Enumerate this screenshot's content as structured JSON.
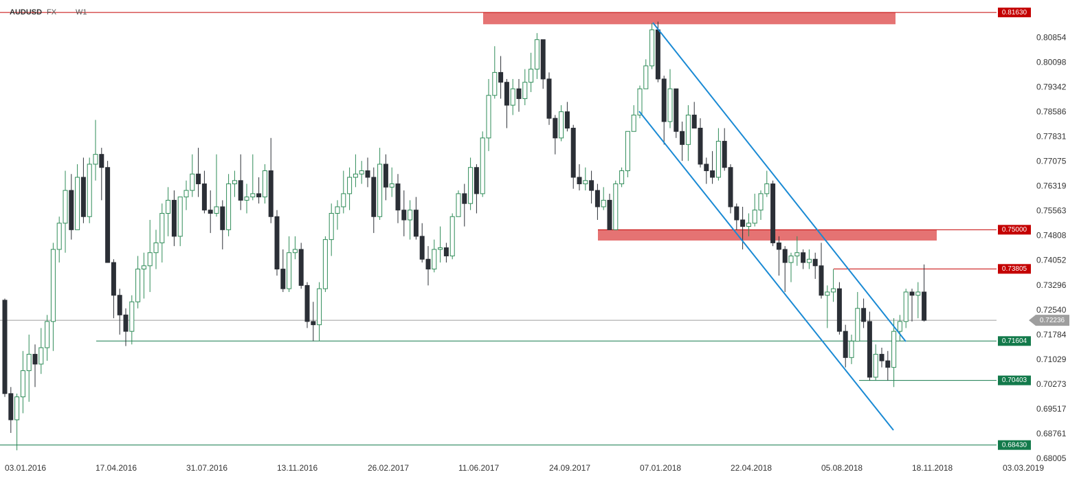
{
  "chart_data": {
    "type": "candlestick",
    "title": "AUDUSD",
    "market": "FX",
    "timeframe": "W1",
    "up_color": "#2e8b57",
    "down_color": "#2b2f36",
    "ylim": [
      0.6792,
      0.8201
    ],
    "yticks": [
      0.80854,
      0.80098,
      0.79342,
      0.78586,
      0.77831,
      0.77075,
      0.76319,
      0.75563,
      0.74808,
      0.74052,
      0.73296,
      {
        "value": 0.7254,
        "label": "0.72540"
      },
      0.71784,
      0.71029,
      0.70273,
      0.69517,
      0.68761,
      0.68005
    ],
    "grid": false,
    "categories": [
      "03.01.2016",
      null,
      null,
      null,
      null,
      null,
      null,
      null,
      null,
      null,
      null,
      null,
      null,
      null,
      null,
      "17.04.2016",
      null,
      null,
      null,
      null,
      null,
      null,
      null,
      null,
      null,
      null,
      null,
      null,
      null,
      null,
      "31.07.2016",
      null,
      null,
      null,
      null,
      null,
      null,
      null,
      null,
      null,
      null,
      null,
      null,
      null,
      null,
      "13.11.2016",
      null,
      null,
      null,
      null,
      null,
      null,
      null,
      null,
      null,
      null,
      null,
      null,
      null,
      null,
      "26.02.2017",
      null,
      null,
      null,
      null,
      null,
      null,
      null,
      null,
      null,
      null,
      null,
      null,
      null,
      null,
      "11.06.2017",
      null,
      null,
      null,
      null,
      null,
      null,
      null,
      null,
      null,
      null,
      null,
      null,
      null,
      null,
      "24.09.2017",
      null,
      null,
      null,
      null,
      null,
      null,
      null,
      null,
      null,
      null,
      null,
      null,
      null,
      null,
      "07.01.2018",
      null,
      null,
      null,
      null,
      null,
      null,
      null,
      null,
      null,
      null,
      null,
      null,
      null,
      null,
      "22.04.2018",
      null,
      null,
      null,
      null,
      null,
      null,
      null,
      null,
      null,
      null,
      null,
      null,
      null,
      null,
      "05.08.2018",
      null,
      null,
      null,
      null,
      null,
      null,
      null,
      null,
      null,
      null,
      null,
      null,
      null,
      null,
      "18.11.2018",
      null,
      null,
      null,
      null,
      null,
      null,
      null,
      null,
      null,
      null,
      null,
      null,
      null,
      null,
      "03.03.2019"
    ],
    "open": [
      0.7285,
      0.7,
      0.692,
      0.699,
      0.707,
      0.712,
      0.709,
      0.714,
      0.722,
      0.744,
      0.752,
      0.762,
      0.75,
      0.766,
      0.754,
      0.77,
      0.773,
      0.769,
      0.74,
      0.73,
      0.724,
      0.719,
      0.728,
      0.738,
      0.739,
      0.743,
      0.746,
      0.755,
      0.759,
      0.748,
      0.76,
      0.762,
      0.767,
      0.764,
      0.756,
      0.755,
      0.757,
      0.75,
      0.764,
      0.765,
      0.759,
      0.76,
      0.761,
      0.76,
      0.768,
      0.754,
      0.738,
      0.732,
      0.743,
      0.744,
      0.733,
      0.722,
      0.721,
      0.732,
      0.747,
      0.755,
      0.757,
      0.761,
      0.766,
      0.767,
      0.768,
      0.766,
      0.754,
      0.77,
      0.763,
      0.764,
      0.756,
      0.753,
      0.756,
      0.748,
      0.741,
      0.738,
      0.744,
      0.7445,
      0.742,
      0.754,
      0.761,
      0.758,
      0.769,
      0.761,
      0.778,
      0.791,
      0.798,
      0.795,
      0.788,
      0.793,
      0.79,
      0.795,
      0.799,
      0.808,
      0.796,
      0.784,
      0.778,
      0.786,
      0.781,
      0.766,
      0.764,
      0.765,
      0.762,
      0.757,
      0.759,
      0.75,
      0.764,
      0.768,
      0.78,
      0.785,
      0.793,
      0.8,
      0.811,
      0.796,
      0.783,
      0.793,
      0.78,
      0.776,
      0.785,
      0.781,
      0.77,
      0.768,
      0.766,
      0.777,
      0.769,
      0.757,
      0.753,
      0.751,
      0.752,
      0.756,
      0.761,
      0.764,
      0.746,
      0.744,
      0.74,
      0.742,
      0.743,
      0.74,
      0.741,
      0.739,
      0.73,
      0.731,
      0.732,
      0.719,
      0.711,
      0.716,
      0.726,
      0.722,
      0.705,
      0.712,
      0.71,
      0.708,
      0.719,
      0.722,
      0.731,
      0.73,
      0.731,
      null,
      null,
      null,
      null,
      null,
      null,
      null,
      null,
      null,
      null,
      null,
      null,
      null
    ],
    "high": [
      0.729,
      0.702,
      0.7,
      0.713,
      0.718,
      0.715,
      0.72,
      0.724,
      0.746,
      0.754,
      0.768,
      0.767,
      0.77,
      0.772,
      0.772,
      0.7835,
      0.775,
      0.771,
      0.741,
      0.732,
      0.726,
      0.73,
      0.742,
      0.743,
      0.753,
      0.75,
      0.758,
      0.763,
      0.762,
      0.76,
      0.765,
      0.773,
      0.775,
      0.768,
      0.762,
      0.773,
      0.759,
      0.767,
      0.768,
      0.773,
      0.764,
      0.773,
      0.766,
      0.77,
      0.778,
      0.756,
      0.744,
      0.748,
      0.748,
      0.746,
      0.734,
      0.728,
      0.734,
      0.748,
      0.758,
      0.759,
      0.768,
      0.769,
      0.773,
      0.771,
      0.772,
      0.769,
      0.775,
      0.773,
      0.769,
      0.767,
      0.762,
      0.759,
      0.76,
      0.752,
      0.745,
      0.747,
      0.751,
      0.746,
      0.755,
      0.762,
      0.764,
      0.772,
      0.77,
      0.78,
      0.796,
      0.806,
      0.803,
      0.796,
      0.796,
      0.796,
      0.799,
      0.804,
      0.81,
      0.808,
      0.798,
      0.785,
      0.788,
      0.789,
      0.782,
      0.77,
      0.769,
      0.768,
      0.764,
      0.763,
      0.761,
      0.765,
      0.769,
      0.78,
      0.788,
      0.794,
      0.802,
      0.813,
      0.8135,
      0.797,
      0.799,
      0.793,
      0.783,
      0.788,
      0.789,
      0.784,
      0.772,
      0.774,
      0.781,
      0.781,
      0.77,
      0.758,
      0.757,
      0.755,
      0.761,
      0.762,
      0.768,
      0.765,
      0.748,
      0.745,
      0.743,
      0.748,
      0.744,
      0.744,
      0.743,
      0.746,
      0.733,
      0.738,
      0.734,
      0.721,
      0.718,
      0.731,
      0.729,
      0.725,
      0.715,
      0.714,
      0.713,
      0.723,
      0.724,
      0.732,
      0.732,
      0.734,
      0.7394,
      null,
      null,
      null,
      null,
      null,
      null,
      null,
      null,
      null,
      null,
      null,
      null,
      null
    ],
    "low": [
      0.699,
      0.688,
      0.6827,
      0.694,
      0.6975,
      0.702,
      0.706,
      0.71,
      0.713,
      0.74,
      0.743,
      0.747,
      0.75,
      0.752,
      0.752,
      0.765,
      0.759,
      0.74,
      0.723,
      0.718,
      0.7145,
      0.715,
      0.726,
      0.729,
      0.731,
      0.738,
      0.74,
      0.748,
      0.745,
      0.745,
      0.756,
      0.76,
      0.76,
      0.755,
      0.749,
      0.754,
      0.744,
      0.748,
      0.76,
      0.756,
      0.755,
      0.759,
      0.758,
      0.758,
      0.752,
      0.736,
      0.731,
      0.731,
      0.741,
      0.732,
      0.72,
      0.716,
      0.716,
      0.731,
      0.742,
      0.75,
      0.755,
      0.756,
      0.763,
      0.764,
      0.763,
      0.749,
      0.753,
      0.759,
      0.76,
      0.752,
      0.748,
      0.747,
      0.747,
      0.74,
      0.733,
      0.737,
      0.74,
      0.74,
      0.741,
      0.754,
      0.751,
      0.756,
      0.755,
      0.76,
      0.774,
      0.79,
      0.79,
      0.781,
      0.785,
      0.786,
      0.788,
      0.792,
      0.796,
      0.793,
      0.782,
      0.773,
      0.777,
      0.78,
      0.7625,
      0.762,
      0.762,
      0.758,
      0.753,
      0.756,
      0.75,
      0.75,
      0.763,
      0.766,
      0.78,
      0.784,
      0.793,
      0.799,
      0.795,
      0.776,
      0.781,
      0.778,
      0.771,
      0.771,
      0.781,
      0.769,
      0.764,
      0.764,
      0.765,
      0.768,
      0.755,
      0.75,
      0.744,
      0.748,
      0.751,
      0.753,
      0.76,
      0.745,
      0.736,
      0.731,
      0.734,
      0.739,
      0.738,
      0.738,
      0.735,
      0.729,
      0.72,
      0.728,
      0.718,
      0.708,
      0.709,
      0.716,
      0.72,
      0.704,
      0.704,
      0.708,
      0.704,
      0.702,
      0.716,
      0.72,
      0.722,
      0.723,
      0.722,
      null,
      null,
      null,
      null,
      null,
      null,
      null,
      null,
      null,
      null,
      null,
      null,
      null
    ],
    "close": [
      0.7,
      0.692,
      0.699,
      0.707,
      0.712,
      0.709,
      0.714,
      0.722,
      0.744,
      0.752,
      0.762,
      0.75,
      0.766,
      0.754,
      0.77,
      0.773,
      0.769,
      0.74,
      0.73,
      0.724,
      0.719,
      0.728,
      0.738,
      0.739,
      0.743,
      0.746,
      0.755,
      0.759,
      0.748,
      0.76,
      0.762,
      0.767,
      0.764,
      0.756,
      0.755,
      0.757,
      0.75,
      0.764,
      0.765,
      0.759,
      0.76,
      0.761,
      0.76,
      0.768,
      0.754,
      0.738,
      0.732,
      0.743,
      0.744,
      0.733,
      0.722,
      0.721,
      0.732,
      0.747,
      0.755,
      0.757,
      0.761,
      0.766,
      0.767,
      0.768,
      0.766,
      0.754,
      0.77,
      0.763,
      0.764,
      0.756,
      0.753,
      0.756,
      0.748,
      0.741,
      0.738,
      0.744,
      0.7445,
      0.742,
      0.754,
      0.761,
      0.758,
      0.769,
      0.761,
      0.778,
      0.791,
      0.798,
      0.795,
      0.788,
      0.793,
      0.79,
      0.795,
      0.799,
      0.808,
      0.796,
      0.784,
      0.778,
      0.786,
      0.781,
      0.766,
      0.764,
      0.765,
      0.762,
      0.757,
      0.759,
      0.75,
      0.764,
      0.768,
      0.78,
      0.785,
      0.793,
      0.8,
      0.811,
      0.796,
      0.783,
      0.793,
      0.78,
      0.776,
      0.785,
      0.781,
      0.77,
      0.768,
      0.766,
      0.777,
      0.769,
      0.757,
      0.753,
      0.751,
      0.752,
      0.756,
      0.761,
      0.764,
      0.746,
      0.744,
      0.74,
      0.742,
      0.743,
      0.74,
      0.741,
      0.739,
      0.73,
      0.731,
      0.732,
      0.719,
      0.711,
      0.716,
      0.726,
      0.722,
      0.705,
      0.712,
      0.71,
      0.708,
      0.719,
      0.722,
      0.731,
      0.73,
      0.731,
      0.72236,
      null,
      null,
      null,
      null,
      null,
      null,
      null,
      null,
      null,
      null,
      null,
      null,
      null
    ],
    "zones": [
      {
        "from": 0.8127,
        "to": 0.8163,
        "color": "#e57373"
      },
      {
        "from": 0.7467,
        "to": 0.75,
        "color": "#e57373"
      }
    ],
    "levels": [
      {
        "value": 0.8163,
        "label": "0.81630",
        "color": "#c40000"
      },
      {
        "value": 0.75,
        "label": "0.75000",
        "color": "#c40000"
      },
      {
        "value": 0.73805,
        "color": "#c40000"
      },
      {
        "value": 0.72236,
        "color": "#9e9e9e"
      },
      {
        "value": 0.71604,
        "color": "#137a4b"
      },
      {
        "value": 0.70403,
        "color": "#137a4b"
      },
      {
        "value": 0.6843,
        "label": "0.68430",
        "color": "#137a4b"
      }
    ]
  }
}
